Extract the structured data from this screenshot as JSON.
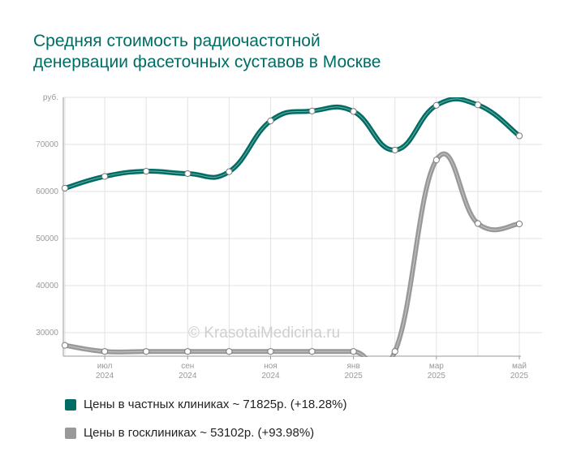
{
  "title_lines": [
    "Средняя стоимость радиочастотной",
    "денервации фасеточных суставов в Москве"
  ],
  "watermark": "© KrasotaiMedicina.ru",
  "colors": {
    "private": "#006d64",
    "public": "#999999",
    "grid": "#e2e2e2",
    "title": "#006d64"
  },
  "chart_data": {
    "type": "line",
    "ylabel": "руб.",
    "ylim": [
      25000,
      80000
    ],
    "y_ticks": [
      30000,
      40000,
      50000,
      60000,
      70000
    ],
    "x_ticks": [
      {
        "index": 1,
        "month": "июл",
        "year": "2024"
      },
      {
        "index": 3,
        "month": "сен",
        "year": "2024"
      },
      {
        "index": 5,
        "month": "ноя",
        "year": "2024"
      },
      {
        "index": 7,
        "month": "янв",
        "year": "2025"
      },
      {
        "index": 9,
        "month": "мар",
        "year": "2025"
      },
      {
        "index": 11,
        "month": "май",
        "year": "2025"
      }
    ],
    "x": [
      "2024-06",
      "2024-07",
      "2024-08",
      "2024-09",
      "2024-10",
      "2024-11",
      "2024-12",
      "2025-01",
      "2025-02",
      "2025-03",
      "2025-04",
      "2025-05"
    ],
    "series": [
      {
        "name": "Цены в частных клиниках",
        "color": "#006d64",
        "values": [
          60700,
          63200,
          64300,
          63800,
          64200,
          75000,
          77100,
          77000,
          68800,
          78300,
          78400,
          71825
        ]
      },
      {
        "name": "Цены в госклиниках",
        "color": "#999999",
        "values": [
          27300,
          26000,
          26000,
          26000,
          26000,
          26000,
          26000,
          26000,
          26000,
          66700,
          53200,
          53102
        ]
      }
    ],
    "grid": true,
    "legend_position": "bottom-left"
  },
  "legend": [
    {
      "text": "Цены в частных клиниках ~ 71825р. (+18.28%)",
      "color": "#006d64"
    },
    {
      "text": "Цены в госклиниках ~ 53102р. (+93.98%)",
      "color": "#999999"
    }
  ]
}
